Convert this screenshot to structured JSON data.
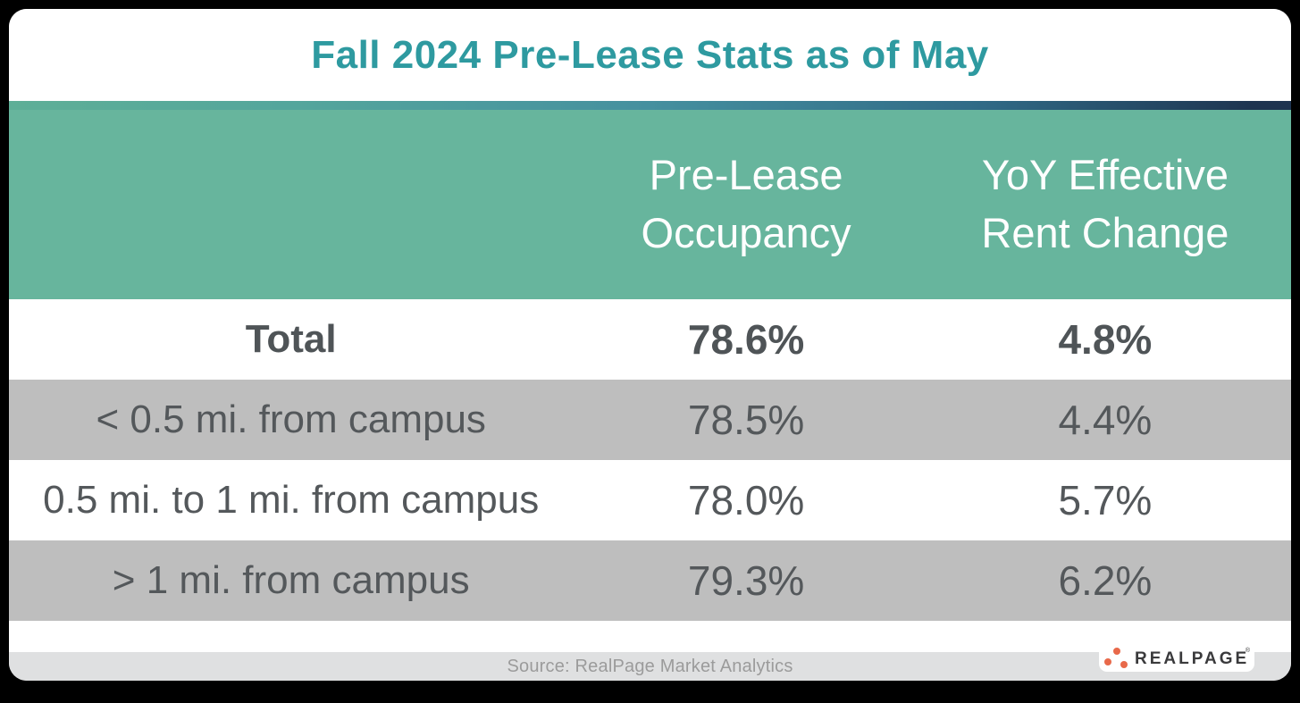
{
  "title": "Fall 2024 Pre-Lease Stats as of May",
  "table": {
    "columns": {
      "occupancy": {
        "line1": "Pre-Lease",
        "line2": "Occupancy"
      },
      "rent": {
        "line1": "YoY Effective",
        "line2": "Rent Change"
      }
    },
    "rows": [
      {
        "label": "Total",
        "occupancy": "78.6%",
        "rent_change": "4.8%",
        "bold": true
      },
      {
        "label": "< 0.5 mi. from campus",
        "occupancy": "78.5%",
        "rent_change": "4.4%",
        "bold": false
      },
      {
        "label": "0.5 mi. to 1 mi. from campus",
        "occupancy": "78.0%",
        "rent_change": "5.7%",
        "bold": false
      },
      {
        "label": "> 1 mi. from campus",
        "occupancy": "79.3%",
        "rent_change": "6.2%",
        "bold": false
      }
    ]
  },
  "footer": {
    "source": "Source: RealPage Market Analytics"
  },
  "logo": {
    "text": "REALPAGE",
    "registered": "®"
  },
  "colors": {
    "title_teal": "#2E9AA0",
    "header_green": "#67B59D",
    "alt_row_gray": "#BEBEBE",
    "footer_gray": "#DFE0E1",
    "text_dark": "#54585B",
    "source_gray": "#9B9B9B",
    "logo_orange": "#E8694A",
    "logo_text": "#3A3A3C",
    "gradient_start": "#5EAF97",
    "gradient_mid": "#45909F",
    "gradient_end": "#1E3450"
  },
  "chart_data": {
    "type": "table",
    "title": "Fall 2024 Pre-Lease Stats as of May",
    "columns": [
      "",
      "Pre-Lease Occupancy",
      "YoY Effective Rent Change"
    ],
    "rows": [
      [
        "Total",
        "78.6%",
        "4.8%"
      ],
      [
        "< 0.5 mi. from campus",
        "78.5%",
        "4.4%"
      ],
      [
        "0.5 mi. to 1 mi. from campus",
        "78.0%",
        "5.7%"
      ],
      [
        "> 1 mi. from campus",
        "79.3%",
        "6.2%"
      ]
    ],
    "occupancy_pct": [
      78.6,
      78.5,
      78.0,
      79.3
    ],
    "rent_change_pct": [
      4.8,
      4.4,
      5.7,
      6.2
    ],
    "source": "Source: RealPage Market Analytics",
    "layout": {
      "alternating_row_shading": true,
      "header_background": "#67B59D"
    }
  }
}
